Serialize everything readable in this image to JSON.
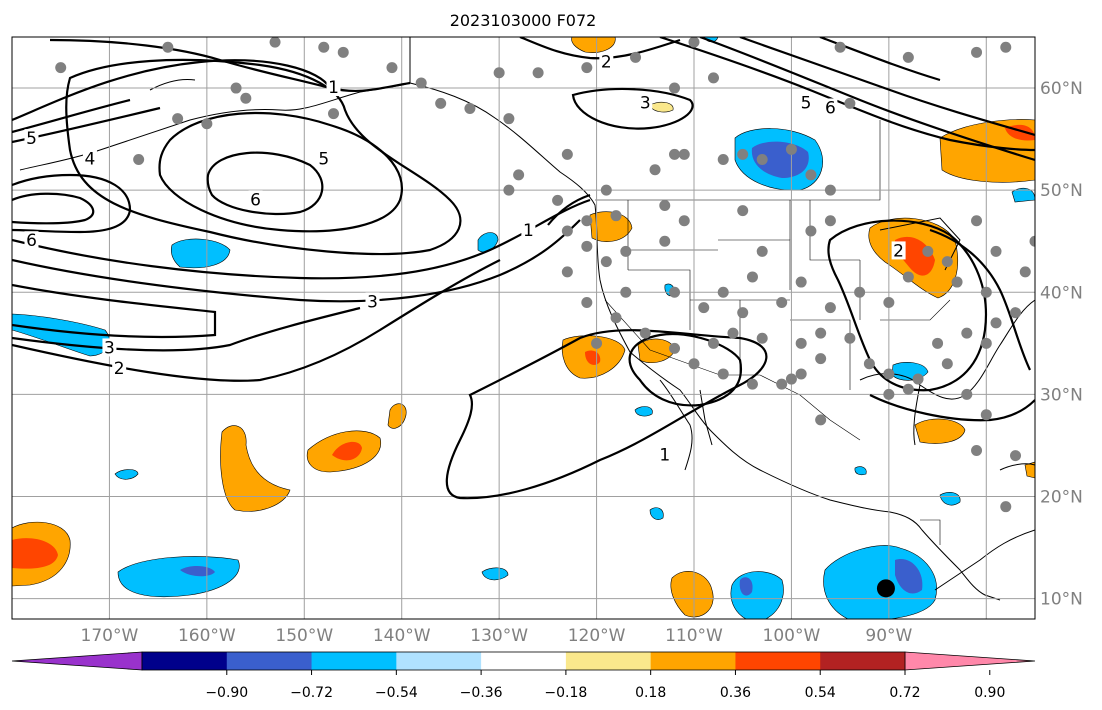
{
  "title": "2023103000 F072",
  "map": {
    "lon_range": [
      -180,
      -75
    ],
    "lat_range": [
      8,
      65
    ],
    "lon_labels": [
      {
        "lon": -170,
        "text": "170°W"
      },
      {
        "lon": -160,
        "text": "160°W"
      },
      {
        "lon": -150,
        "text": "150°W"
      },
      {
        "lon": -140,
        "text": "140°W"
      },
      {
        "lon": -130,
        "text": "130°W"
      },
      {
        "lon": -120,
        "text": "120°W"
      },
      {
        "lon": -110,
        "text": "110°W"
      },
      {
        "lon": -100,
        "text": "100°W"
      },
      {
        "lon": -90,
        "text": "90°W"
      }
    ],
    "lat_labels": [
      {
        "lat": 10,
        "text": "10°N"
      },
      {
        "lat": 20,
        "text": "20°N"
      },
      {
        "lat": 30,
        "text": "30°N"
      },
      {
        "lat": 40,
        "text": "40°N"
      },
      {
        "lat": 50,
        "text": "50°N"
      },
      {
        "lat": 60,
        "text": "60°N"
      }
    ],
    "grid": true,
    "grid_color": "#a0a0a0"
  },
  "colorbar": {
    "orientation": "horizontal",
    "extend": "both",
    "levels": [
      -0.9,
      -0.72,
      -0.54,
      -0.36,
      -0.18,
      0.18,
      0.36,
      0.54,
      0.72,
      0.9
    ],
    "tick_labels": [
      "−0.90",
      "−0.72",
      "−0.54",
      "−0.36",
      "−0.18",
      "0.18",
      "0.36",
      "0.54",
      "0.72",
      "0.90"
    ],
    "colors": [
      "#9932cc",
      "#00008b",
      "#3a5fcd",
      "#00bfff",
      "#b0e2ff",
      "#ffffff",
      "#fae88c",
      "#ffa500",
      "#ff4500",
      "#b22222",
      "#ff88aa"
    ]
  },
  "contour_labels": [
    {
      "text": "1",
      "lon": -147,
      "lat": 60
    },
    {
      "text": "5",
      "lon": -178,
      "lat": 55
    },
    {
      "text": "4",
      "lon": -172,
      "lat": 53
    },
    {
      "text": "5",
      "lon": -148,
      "lat": 53
    },
    {
      "text": "6",
      "lon": -155,
      "lat": 49
    },
    {
      "text": "6",
      "lon": -178,
      "lat": 45
    },
    {
      "text": "3",
      "lon": -143,
      "lat": 39
    },
    {
      "text": "3",
      "lon": -170,
      "lat": 34.5
    },
    {
      "text": "2",
      "lon": -169,
      "lat": 32.5
    },
    {
      "text": "2",
      "lon": -119,
      "lat": 62.5
    },
    {
      "text": "3",
      "lon": -115,
      "lat": 58.5
    },
    {
      "text": "5",
      "lon": -98.5,
      "lat": 58.5
    },
    {
      "text": "6",
      "lon": -96,
      "lat": 58
    },
    {
      "text": "1",
      "lon": -127,
      "lat": 46
    },
    {
      "text": "1",
      "lon": -113,
      "lat": 24
    },
    {
      "text": "2",
      "lon": -89,
      "lat": 44
    }
  ],
  "stations_color": "#808080",
  "marker": {
    "lon": -90.3,
    "lat": 11,
    "color": "#000000"
  }
}
